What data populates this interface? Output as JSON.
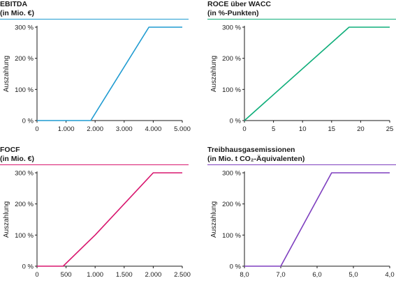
{
  "chart_data": [
    {
      "type": "line",
      "title_lines": [
        "EBITDA",
        "(in Mio. €)"
      ],
      "ylabel": "Auszahlung",
      "color": "#1f9bd1",
      "x_ticks": [
        "0",
        "1.000",
        "2.000",
        "3.000",
        "4.000",
        "5.000"
      ],
      "xlim": [
        0,
        5000
      ],
      "y_ticks": [
        "0 %",
        "100 %",
        "200 %",
        "300 %"
      ],
      "ylim": [
        0,
        300
      ],
      "reversed_x": false,
      "x": [
        0,
        1850,
        3850,
        5000
      ],
      "y": [
        0,
        0,
        300,
        300
      ]
    },
    {
      "type": "line",
      "title_lines": [
        "ROCE über WACC",
        "(in %-Punkten)"
      ],
      "ylabel": "Auszahlung",
      "color": "#0fae7a",
      "x_ticks": [
        "0",
        "5",
        "10",
        "15",
        "20",
        "25"
      ],
      "xlim": [
        0,
        25
      ],
      "y_ticks": [
        "0 %",
        "100 %",
        "200 %",
        "300 %"
      ],
      "ylim": [
        0,
        300
      ],
      "reversed_x": false,
      "x": [
        0,
        18,
        25
      ],
      "y": [
        0,
        300,
        300
      ]
    },
    {
      "type": "line",
      "title_lines": [
        "FOCF",
        "(in Mio. €)"
      ],
      "ylabel": "Auszahlung",
      "color": "#d8166e",
      "x_ticks": [
        "0",
        "500",
        "1.000",
        "1.500",
        "2.000",
        "2.500"
      ],
      "xlim": [
        0,
        2500
      ],
      "y_ticks": [
        "0 %",
        "100 %",
        "200 %",
        "300 %"
      ],
      "ylim": [
        0,
        300
      ],
      "reversed_x": false,
      "x": [
        0,
        450,
        1000,
        2000,
        2500
      ],
      "y": [
        0,
        0,
        100,
        300,
        300
      ]
    },
    {
      "type": "line",
      "title_lines": [
        "Treibhausgasemissionen",
        "(in Mio. t CO₂-Äquivalenten)"
      ],
      "ylabel": "Auszahlung",
      "color": "#7e3fbf",
      "x_ticks": [
        "8,0",
        "7,0",
        "6,0",
        "5,0",
        "4,0"
      ],
      "xlim": [
        8.0,
        4.0
      ],
      "y_ticks": [
        "0 %",
        "100 %",
        "200 %",
        "300 %"
      ],
      "ylim": [
        0,
        300
      ],
      "reversed_x": true,
      "x": [
        8.0,
        7.0,
        5.6,
        4.0
      ],
      "y": [
        0,
        0,
        300,
        300
      ]
    }
  ]
}
